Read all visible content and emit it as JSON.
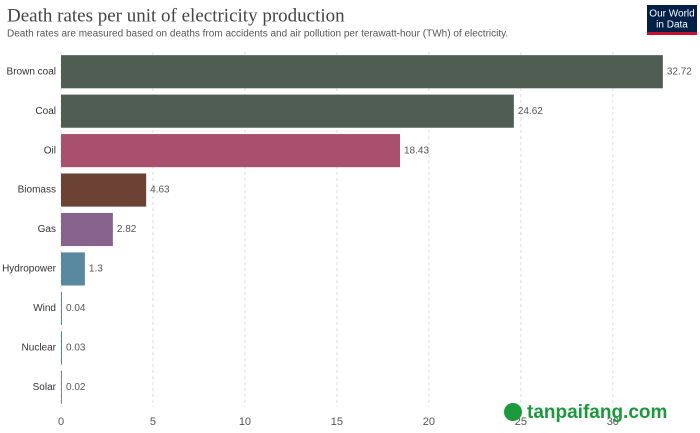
{
  "chart_data": {
    "type": "bar",
    "orientation": "horizontal",
    "title": "Death rates per unit of electricity production",
    "subtitle": "Death rates are measured based on deaths from accidents and air pollution per terawatt-hour (TWh) of electricity.",
    "logo": [
      "Our World",
      "in Data"
    ],
    "watermark": "tanpaifang.com",
    "categories": [
      "Brown coal",
      "Coal",
      "Oil",
      "Biomass",
      "Gas",
      "Hydropower",
      "Wind",
      "Nuclear",
      "Solar"
    ],
    "values": [
      32.72,
      24.62,
      18.43,
      4.63,
      2.82,
      1.3,
      0.04,
      0.03,
      0.02
    ],
    "colors": [
      "#4f5d53",
      "#4f5d53",
      "#a8506e",
      "#6b4233",
      "#86628c",
      "#5889a0",
      "#5889a0",
      "#4f8b8a",
      "#8a7fa0"
    ],
    "xlim": [
      0,
      33
    ],
    "xticks": [
      0,
      5,
      10,
      15,
      20,
      25,
      30
    ],
    "grid": true
  }
}
